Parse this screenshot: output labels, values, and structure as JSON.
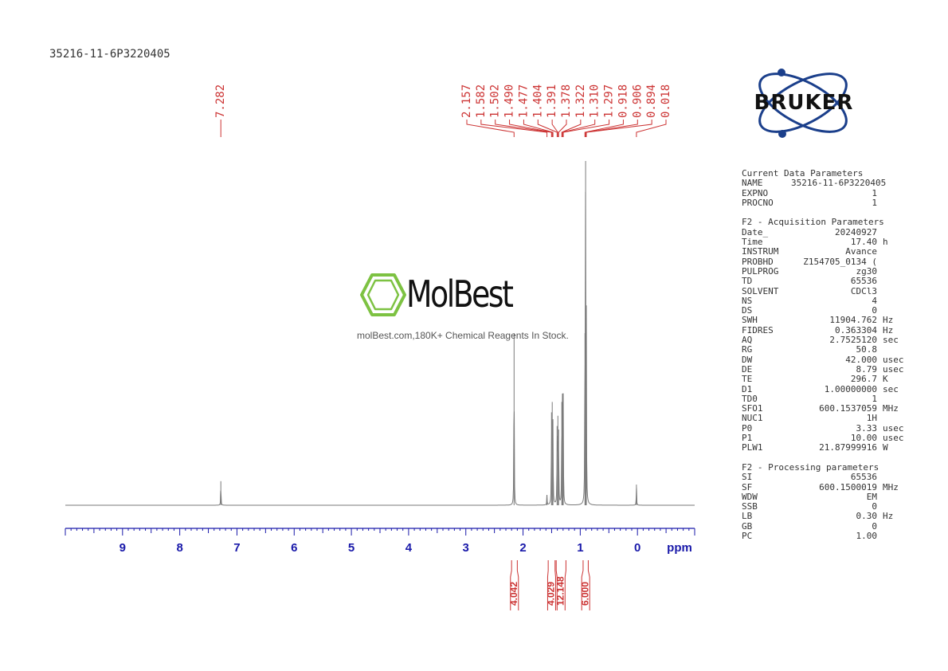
{
  "sample_name": "35216-11-6P3220405",
  "watermark": {
    "brand": "MolBest",
    "tagline": "molBest.com,180K+ Chemical Reagents In Stock."
  },
  "logo": {
    "text": "BRUKER"
  },
  "chart_data": {
    "type": "line",
    "title": "35216-11-6P3220405",
    "xlabel": "ppm",
    "ylabel": "",
    "xlim": [
      10.0,
      -1.0
    ],
    "x_ticks": [
      9,
      8,
      7,
      6,
      5,
      4,
      3,
      2,
      1,
      0
    ],
    "x_unit": "ppm",
    "grid": false,
    "peaks": [
      {
        "ppm": 7.282,
        "height": 0.07
      },
      {
        "ppm": 2.157,
        "height": 0.5
      },
      {
        "ppm": 1.582,
        "height": 0.03
      },
      {
        "ppm": 1.502,
        "height": 0.27
      },
      {
        "ppm": 1.49,
        "height": 0.3
      },
      {
        "ppm": 1.477,
        "height": 0.25
      },
      {
        "ppm": 1.404,
        "height": 0.23
      },
      {
        "ppm": 1.391,
        "height": 0.26
      },
      {
        "ppm": 1.378,
        "height": 0.22
      },
      {
        "ppm": 1.322,
        "height": 0.3
      },
      {
        "ppm": 1.31,
        "height": 0.32
      },
      {
        "ppm": 1.297,
        "height": 0.3
      },
      {
        "ppm": 0.918,
        "height": 0.5
      },
      {
        "ppm": 0.906,
        "height": 1.0
      },
      {
        "ppm": 0.894,
        "height": 0.5
      },
      {
        "ppm": 0.018,
        "height": 0.06
      }
    ],
    "peak_labels": [
      "7.282",
      "2.157",
      "1.582",
      "1.502",
      "1.490",
      "1.477",
      "1.404",
      "1.391",
      "1.378",
      "1.322",
      "1.310",
      "1.297",
      "0.918",
      "0.906",
      "0.894",
      "0.018"
    ],
    "integrals": [
      {
        "label": "4.042",
        "from": 2.2,
        "to": 2.1
      },
      {
        "label": "4.029",
        "from": 1.56,
        "to": 1.44
      },
      {
        "label": "12.148",
        "from": 1.42,
        "to": 1.25
      },
      {
        "label": "6.000",
        "from": 0.95,
        "to": 0.86
      }
    ]
  },
  "parameters": {
    "current": {
      "title": "Current Data Parameters",
      "rows": [
        {
          "key": "NAME",
          "value": "35216-11-6P3220405",
          "unit": ""
        },
        {
          "key": "EXPNO",
          "value": "1",
          "unit": ""
        },
        {
          "key": "PROCNO",
          "value": "1",
          "unit": ""
        }
      ]
    },
    "acquisition": {
      "title": "F2 - Acquisition Parameters",
      "rows": [
        {
          "key": "Date_",
          "value": "20240927",
          "unit": ""
        },
        {
          "key": "Time",
          "value": "17.40",
          "unit": "h"
        },
        {
          "key": "INSTRUM",
          "value": "Avance",
          "unit": ""
        },
        {
          "key": "PROBHD",
          "value": "Z154705_0134 (",
          "unit": ""
        },
        {
          "key": "PULPROG",
          "value": "zg30",
          "unit": ""
        },
        {
          "key": "TD",
          "value": "65536",
          "unit": ""
        },
        {
          "key": "SOLVENT",
          "value": "CDCl3",
          "unit": ""
        },
        {
          "key": "NS",
          "value": "4",
          "unit": ""
        },
        {
          "key": "DS",
          "value": "0",
          "unit": ""
        },
        {
          "key": "SWH",
          "value": "11904.762",
          "unit": "Hz"
        },
        {
          "key": "FIDRES",
          "value": "0.363304",
          "unit": "Hz"
        },
        {
          "key": "AQ",
          "value": "2.7525120",
          "unit": "sec"
        },
        {
          "key": "RG",
          "value": "50.8",
          "unit": ""
        },
        {
          "key": "DW",
          "value": "42.000",
          "unit": "usec"
        },
        {
          "key": "DE",
          "value": "8.79",
          "unit": "usec"
        },
        {
          "key": "TE",
          "value": "296.7",
          "unit": "K"
        },
        {
          "key": "D1",
          "value": "1.00000000",
          "unit": "sec"
        },
        {
          "key": "TD0",
          "value": "1",
          "unit": ""
        },
        {
          "key": "SFO1",
          "value": "600.1537059",
          "unit": "MHz"
        },
        {
          "key": "NUC1",
          "value": "1H",
          "unit": ""
        },
        {
          "key": "P0",
          "value": "3.33",
          "unit": "usec"
        },
        {
          "key": "P1",
          "value": "10.00",
          "unit": "usec"
        },
        {
          "key": "PLW1",
          "value": "21.87999916",
          "unit": "W"
        }
      ]
    },
    "processing": {
      "title": "F2 - Processing parameters",
      "rows": [
        {
          "key": "SI",
          "value": "65536",
          "unit": ""
        },
        {
          "key": "SF",
          "value": "600.1500019",
          "unit": "MHz"
        },
        {
          "key": "WDW",
          "value": "EM",
          "unit": ""
        },
        {
          "key": "SSB",
          "value": "0",
          "unit": ""
        },
        {
          "key": "LB",
          "value": "0.30",
          "unit": "Hz"
        },
        {
          "key": "GB",
          "value": "0",
          "unit": ""
        },
        {
          "key": "PC",
          "value": "1.00",
          "unit": ""
        }
      ]
    }
  },
  "colors": {
    "spectrum": "#7a7a7a",
    "axis": "#1a1aaa",
    "peak_label": "#cc3333",
    "integral": "#cc3333",
    "brand_green": "#7dc242",
    "bruker_blue": "#1b3f8b"
  }
}
